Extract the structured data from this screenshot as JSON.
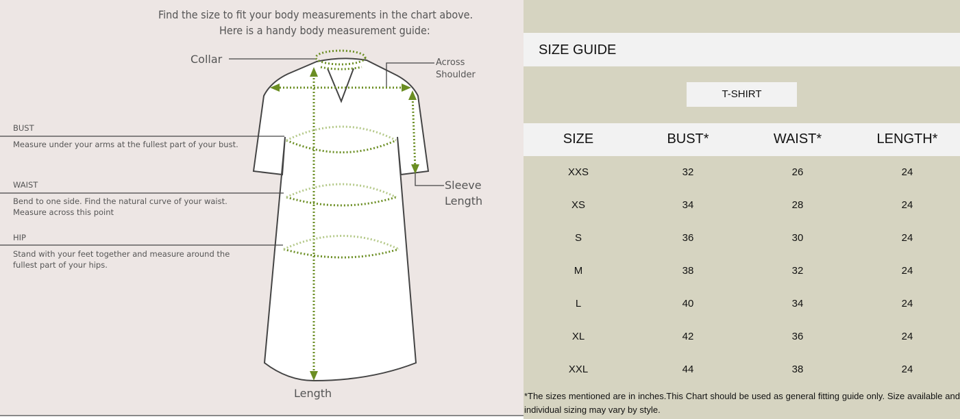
{
  "guide": {
    "heading_line1": "Find the size to fit your body measurements in the chart above.",
    "heading_line2": "Here is a handy body measurement guide:",
    "labels": {
      "collar": "Collar",
      "across_shoulder_1": "Across",
      "across_shoulder_2": "Shoulder",
      "sleeve_1": "Sleeve",
      "sleeve_2": "Length",
      "length": "Length"
    },
    "sections": [
      {
        "title": "BUST",
        "desc1": "Measure under your arms at the fullest part of your bust.",
        "desc2": ""
      },
      {
        "title": "WAIST",
        "desc1": "Bend to one side. Find the natural curve of your waist.",
        "desc2": "Measure across this point"
      },
      {
        "title": "HIP",
        "desc1": "Stand with your feet together and measure around the",
        "desc2": "fullest part of your hips."
      }
    ],
    "colors": {
      "background": "#ede6e4",
      "measure_dots": "#6b8e23",
      "outline": "#444444"
    }
  },
  "size_guide": {
    "title": "SIZE GUIDE",
    "category": "T-SHIRT",
    "headers": [
      "SIZE",
      "BUST*",
      "WAIST*",
      "LENGTH*"
    ],
    "rows": [
      [
        "XXS",
        "32",
        "26",
        "24"
      ],
      [
        "XS",
        "34",
        "28",
        "24"
      ],
      [
        "S",
        "36",
        "30",
        "24"
      ],
      [
        "M",
        "38",
        "32",
        "24"
      ],
      [
        "L",
        "40",
        "34",
        "24"
      ],
      [
        "XL",
        "42",
        "36",
        "24"
      ],
      [
        "XXL",
        "44",
        "38",
        "24"
      ]
    ],
    "footnote": "*The sizes mentioned are in inches.This Chart should be used as general fitting guide only. Size available and individual sizing may vary by style.",
    "colors": {
      "background": "#d6d4c1",
      "band": "#f2f2f2"
    }
  }
}
